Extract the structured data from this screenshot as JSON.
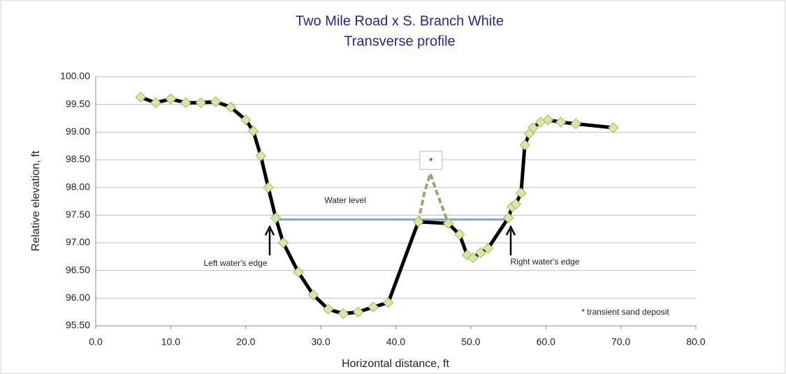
{
  "chart_data": {
    "type": "line",
    "title": "Two Mile Road x S. Branch White",
    "subtitle": "Transverse profile",
    "x_label": "Horizontal distance, ft",
    "y_label": "Relative elevation, ft",
    "x": [
      6,
      8,
      10,
      12,
      14,
      16,
      18,
      20,
      21,
      22,
      23,
      24,
      25,
      27,
      29,
      31,
      33,
      35,
      37,
      39,
      43,
      47,
      48.5,
      49.5,
      50.3,
      51.3,
      52.3,
      55,
      55.5,
      56,
      56.7,
      57.2,
      57.8,
      58.3,
      59.3,
      60.3,
      62,
      64,
      69
    ],
    "values": [
      99.63,
      99.53,
      99.6,
      99.53,
      99.53,
      99.55,
      99.45,
      99.22,
      99.02,
      98.57,
      98.0,
      97.45,
      97.0,
      96.47,
      96.06,
      95.8,
      95.72,
      95.75,
      95.84,
      95.92,
      97.38,
      97.35,
      97.15,
      96.78,
      96.73,
      96.82,
      96.9,
      97.45,
      97.65,
      97.7,
      97.9,
      98.77,
      98.97,
      99.08,
      99.18,
      99.22,
      99.18,
      99.15,
      99.08
    ],
    "color": "#000000",
    "marker_color": "#d6e8a4",
    "sand_deposit": {
      "x": [
        43,
        43.8,
        44.6,
        45.5,
        47
      ],
      "values": [
        97.38,
        97.9,
        98.25,
        97.9,
        97.35
      ],
      "color": "#a89f75",
      "label": "*"
    },
    "water_level": {
      "x": [
        24,
        55
      ],
      "values": [
        97.42,
        97.42
      ],
      "color": "#7fa6d6",
      "label": "Water level"
    },
    "annotations": [
      "Left water's edge",
      "Right water's edge",
      "* transient sand deposit"
    ],
    "xlim": [
      0,
      80
    ],
    "ylim": [
      95.5,
      100
    ],
    "xticks": [
      {
        "value": 0,
        "label": "0.0"
      },
      {
        "value": 10,
        "label": "10.0"
      },
      {
        "value": 20,
        "label": "20.0"
      },
      {
        "value": 30,
        "label": "30.0"
      },
      {
        "value": 40,
        "label": "40.0"
      },
      {
        "value": 50,
        "label": "50.0"
      },
      {
        "value": 60,
        "label": "60.0"
      },
      {
        "value": 70,
        "label": "70.0"
      },
      {
        "value": 80,
        "label": "80.0"
      }
    ],
    "yticks": [
      {
        "value": 95.5,
        "label": "95.50"
      },
      {
        "value": 96,
        "label": "96.00"
      },
      {
        "value": 96.5,
        "label": "96.50"
      },
      {
        "value": 97,
        "label": "97.00"
      },
      {
        "value": 97.5,
        "label": "97.50"
      },
      {
        "value": 98,
        "label": "98.00"
      },
      {
        "value": 98.5,
        "label": "98.50"
      },
      {
        "value": 99,
        "label": "99.00"
      },
      {
        "value": 99.5,
        "label": "99.50"
      },
      {
        "value": 100,
        "label": "100.00"
      }
    ],
    "grid": true
  }
}
